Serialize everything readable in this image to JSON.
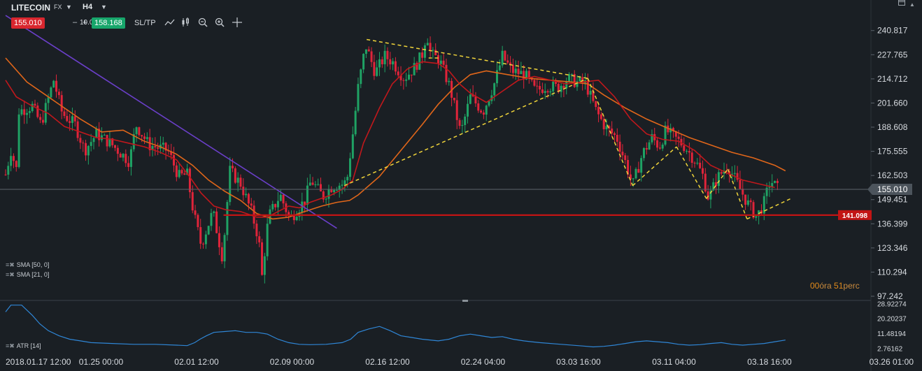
{
  "toolbar": {
    "symbol": "LITECOIN",
    "instrument_type": "FX",
    "timeframe": "H4",
    "sell_price": "155.010",
    "lot_minus": "–",
    "lot_size": "10.00",
    "lot_plus": "+",
    "buy_price": "158.168",
    "sltp_label": "SL/TP",
    "tool_icons": [
      "line-tool-icon",
      "candle-type-icon",
      "zoom-out-icon",
      "zoom-in-icon",
      "crosshair-icon"
    ]
  },
  "indicators_legend": [
    "SMA [50, 0]",
    "SMA [21, 0]"
  ],
  "atr_legend": "ATR [14]",
  "countdown": {
    "hours": "00",
    "hours_unit": "óra",
    "minutes": "51",
    "minutes_unit": "perc"
  },
  "colors": {
    "background": "#1a1f24",
    "bull": "#1fa264",
    "bear": "#e0243a",
    "sma50": "#e0661a",
    "sma21": "#c0181c",
    "trendline": "#6a3fc8",
    "pattern": "#f0d43a",
    "support": "#c21414",
    "atr": "#2f86d6",
    "sell_badge": "#d9262e",
    "buy_badge": "#17a66b"
  },
  "chart_data": {
    "type": "candlestick",
    "symbol": "LITECOIN",
    "timeframe": "H4",
    "y_ticks": [
      "240.817",
      "227.765",
      "214.712",
      "201.660",
      "188.608",
      "175.555",
      "162.503",
      "149.451",
      "136.399",
      "123.346",
      "110.294",
      "97.242"
    ],
    "ylim": [
      97.242,
      246
    ],
    "x_ticks": [
      "2018.01.17 12:00",
      "01.25 00:00",
      "02.01 12:00",
      "02.09 00:00",
      "02.16 12:00",
      "02.24 04:00",
      "03.03 16:00",
      "03.11 04:00",
      "03.18 16:00",
      "03.26 01:00"
    ],
    "current_price": "155.010",
    "support_level": "141.098",
    "candle_path": [
      [
        0,
        163
      ],
      [
        0.5,
        176
      ],
      [
        1.0,
        166
      ],
      [
        1.1,
        197
      ],
      [
        2.5,
        200
      ],
      [
        3.3,
        190
      ],
      [
        4.5,
        214
      ],
      [
        5.3,
        196
      ],
      [
        6.5,
        190
      ],
      [
        7.4,
        176
      ],
      [
        8.5,
        185
      ],
      [
        9.8,
        180
      ],
      [
        11.6,
        170
      ],
      [
        12.2,
        190
      ],
      [
        13.4,
        179
      ],
      [
        15.2,
        176
      ],
      [
        16.2,
        162
      ],
      [
        17.0,
        163
      ],
      [
        17.6,
        142
      ],
      [
        18.3,
        125
      ],
      [
        19.4,
        143
      ],
      [
        20.3,
        118
      ],
      [
        21.0,
        165
      ],
      [
        22.0,
        158
      ],
      [
        23.0,
        143
      ],
      [
        23.7,
        128
      ],
      [
        24.0,
        108
      ],
      [
        24.6,
        140
      ],
      [
        25.7,
        152
      ],
      [
        26.6,
        139
      ],
      [
        28.0,
        149
      ],
      [
        28.6,
        160
      ],
      [
        29.7,
        151
      ],
      [
        30.6,
        157
      ],
      [
        31.7,
        158
      ],
      [
        32.0,
        162
      ],
      [
        32.5,
        185
      ],
      [
        33.0,
        210
      ],
      [
        33.7,
        233
      ],
      [
        34.6,
        218
      ],
      [
        35.5,
        227
      ],
      [
        36.2,
        224
      ],
      [
        37.3,
        215
      ],
      [
        38.3,
        221
      ],
      [
        39.0,
        228
      ],
      [
        39.4,
        240
      ],
      [
        39.8,
        228
      ],
      [
        40.6,
        225
      ],
      [
        41.6,
        210
      ],
      [
        42.6,
        185
      ],
      [
        43.5,
        205
      ],
      [
        44.7,
        197
      ],
      [
        45.8,
        213
      ],
      [
        46.5,
        227
      ],
      [
        47.4,
        219
      ],
      [
        48.6,
        217
      ],
      [
        49.6,
        208
      ],
      [
        50.6,
        211
      ],
      [
        51.7,
        210
      ],
      [
        52.6,
        215
      ],
      [
        53.4,
        213
      ],
      [
        54.3,
        212
      ],
      [
        55.3,
        197
      ],
      [
        56.2,
        188
      ],
      [
        57.2,
        183
      ],
      [
        58.0,
        170
      ],
      [
        58.7,
        157
      ],
      [
        59.6,
        174
      ],
      [
        60.5,
        183
      ],
      [
        61.2,
        178
      ],
      [
        61.8,
        187
      ],
      [
        62.6,
        183
      ],
      [
        63.6,
        178
      ],
      [
        64.6,
        170
      ],
      [
        65.3,
        162
      ],
      [
        65.8,
        150
      ],
      [
        66.6,
        161
      ],
      [
        67.6,
        168
      ],
      [
        68.5,
        158
      ],
      [
        69.4,
        148
      ],
      [
        70.3,
        140
      ],
      [
        71.0,
        148
      ],
      [
        71.6,
        160
      ],
      [
        72.3,
        155
      ]
    ],
    "series": [
      {
        "name": "SMA [50, 0]",
        "points": [
          [
            0,
            226
          ],
          [
            2,
            213
          ],
          [
            3.5,
            207
          ],
          [
            5.5,
            199
          ],
          [
            7,
            193
          ],
          [
            9,
            186
          ],
          [
            11,
            187
          ],
          [
            13,
            181
          ],
          [
            14.5,
            178
          ],
          [
            16,
            174
          ],
          [
            17.5,
            168
          ],
          [
            19,
            160
          ],
          [
            20.5,
            154
          ],
          [
            22,
            149
          ],
          [
            23.5,
            142
          ],
          [
            25,
            139
          ],
          [
            26.5,
            140
          ],
          [
            28,
            143
          ],
          [
            29.6,
            146
          ],
          [
            31,
            148
          ],
          [
            32.2,
            149
          ],
          [
            33,
            152
          ],
          [
            35,
            162
          ],
          [
            37,
            176
          ],
          [
            39,
            190
          ],
          [
            40.5,
            201
          ],
          [
            42,
            210
          ],
          [
            43.5,
            217
          ],
          [
            45,
            219
          ],
          [
            47,
            217
          ],
          [
            49,
            215
          ],
          [
            51,
            214
          ],
          [
            53,
            213
          ],
          [
            54.5,
            212
          ],
          [
            56,
            206
          ],
          [
            58,
            199
          ],
          [
            60,
            193
          ],
          [
            62,
            188
          ],
          [
            64,
            183
          ],
          [
            66,
            179
          ],
          [
            68,
            175
          ],
          [
            70,
            172
          ],
          [
            72,
            168
          ],
          [
            73,
            165
          ]
        ]
      },
      {
        "name": "SMA [21, 0]",
        "points": [
          [
            0,
            214
          ],
          [
            1,
            205
          ],
          [
            2.5,
            200
          ],
          [
            4,
            196
          ],
          [
            5.5,
            189
          ],
          [
            7,
            186
          ],
          [
            8.5,
            183
          ],
          [
            10,
            182
          ],
          [
            11.5,
            180
          ],
          [
            13,
            178
          ],
          [
            14.5,
            175
          ],
          [
            16,
            171
          ],
          [
            17.2,
            162
          ],
          [
            18.3,
            153
          ],
          [
            19.5,
            146
          ],
          [
            20.6,
            144
          ],
          [
            22,
            143
          ],
          [
            23.5,
            140
          ],
          [
            24.5,
            140
          ],
          [
            25.5,
            143
          ],
          [
            26.5,
            146
          ],
          [
            27.5,
            145
          ],
          [
            28.5,
            148
          ],
          [
            29.5,
            150
          ],
          [
            30.5,
            152
          ],
          [
            31.5,
            155
          ],
          [
            32.5,
            160
          ],
          [
            33.5,
            180
          ],
          [
            35,
            199
          ],
          [
            36.2,
            212
          ],
          [
            37.6,
            220
          ],
          [
            39,
            224
          ],
          [
            40.5,
            223
          ],
          [
            41.5,
            219
          ],
          [
            42.5,
            212
          ],
          [
            43.5,
            207
          ],
          [
            45,
            202
          ],
          [
            46.5,
            208
          ],
          [
            48,
            214
          ],
          [
            49.5,
            216
          ],
          [
            51,
            214
          ],
          [
            52.5,
            212
          ],
          [
            54,
            213
          ],
          [
            55.5,
            214
          ],
          [
            57,
            205
          ],
          [
            58.5,
            193
          ],
          [
            60,
            185
          ],
          [
            61.5,
            182
          ],
          [
            63,
            181
          ],
          [
            64.5,
            176
          ],
          [
            66,
            168
          ],
          [
            67.5,
            164
          ],
          [
            69,
            160
          ],
          [
            70.5,
            158
          ],
          [
            72,
            156
          ]
        ]
      }
    ],
    "atr": {
      "name": "ATR [14]",
      "y_ticks": [
        "28.92274",
        "20.20237",
        "11.48194",
        "2.76162"
      ],
      "ylim": [
        0,
        29.5
      ],
      "points": [
        [
          0,
          24
        ],
        [
          0.5,
          28
        ],
        [
          1.5,
          28
        ],
        [
          2.5,
          22
        ],
        [
          3.2,
          17
        ],
        [
          4,
          13
        ],
        [
          5,
          10
        ],
        [
          6,
          8
        ],
        [
          7,
          7
        ],
        [
          8,
          6
        ],
        [
          10,
          5.5
        ],
        [
          12,
          5
        ],
        [
          14,
          5
        ],
        [
          16,
          4.5
        ],
        [
          17,
          4.2
        ],
        [
          17.7,
          6
        ],
        [
          18.2,
          8
        ],
        [
          18.8,
          10
        ],
        [
          19.5,
          12
        ],
        [
          20.5,
          12.5
        ],
        [
          21.5,
          13
        ],
        [
          22.5,
          12
        ],
        [
          23.5,
          12
        ],
        [
          24.5,
          11
        ],
        [
          25.5,
          8
        ],
        [
          26.5,
          6
        ],
        [
          27.5,
          5
        ],
        [
          28.5,
          4.8
        ],
        [
          30,
          5
        ],
        [
          31.5,
          6
        ],
        [
          32.3,
          8
        ],
        [
          33,
          12
        ],
        [
          34,
          14
        ],
        [
          35,
          15.5
        ],
        [
          36,
          13
        ],
        [
          37,
          10
        ],
        [
          38,
          9
        ],
        [
          39,
          8
        ],
        [
          40.5,
          7
        ],
        [
          41.5,
          8
        ],
        [
          42.5,
          10
        ],
        [
          43.5,
          11
        ],
        [
          44.5,
          10
        ],
        [
          45.5,
          9
        ],
        [
          46.5,
          9.5
        ],
        [
          47.5,
          8
        ],
        [
          48.5,
          7
        ],
        [
          50,
          6
        ],
        [
          52,
          5
        ],
        [
          54,
          4
        ],
        [
          55,
          3.5
        ],
        [
          56,
          3.8
        ],
        [
          57,
          4.5
        ],
        [
          58,
          5.5
        ],
        [
          59,
          6.5
        ],
        [
          60,
          7
        ],
        [
          61,
          6.5
        ],
        [
          62,
          6
        ],
        [
          63,
          5
        ],
        [
          64,
          4.5
        ],
        [
          65,
          4.8
        ],
        [
          66,
          5.5
        ],
        [
          67,
          6
        ],
        [
          68,
          5
        ],
        [
          69,
          4.5
        ],
        [
          70,
          5
        ],
        [
          71,
          5.5
        ],
        [
          72,
          6.5
        ],
        [
          73,
          7.5
        ]
      ]
    },
    "trendline": [
      [
        0,
        249
      ],
      [
        31,
        134
      ]
    ],
    "pattern_lines": [
      [
        [
          33.8,
          236
        ],
        [
          54.5,
          215
        ]
      ],
      [
        [
          31.7,
          157
        ],
        [
          54.5,
          215
        ]
      ],
      [
        [
          40.5,
          226
        ],
        [
          39.6,
          226
        ]
      ],
      [
        [
          54.5,
          215
        ],
        [
          58.7,
          157
        ]
      ],
      [
        [
          58.7,
          157
        ],
        [
          62.8,
          178
        ]
      ],
      [
        [
          62.8,
          178
        ],
        [
          65.6,
          150
        ]
      ],
      [
        [
          65.6,
          150
        ],
        [
          67.6,
          166
        ]
      ],
      [
        [
          67.6,
          166
        ],
        [
          69.4,
          139
        ]
      ],
      [
        [
          69.4,
          139
        ],
        [
          73.5,
          150
        ]
      ]
    ],
    "grid": false
  }
}
